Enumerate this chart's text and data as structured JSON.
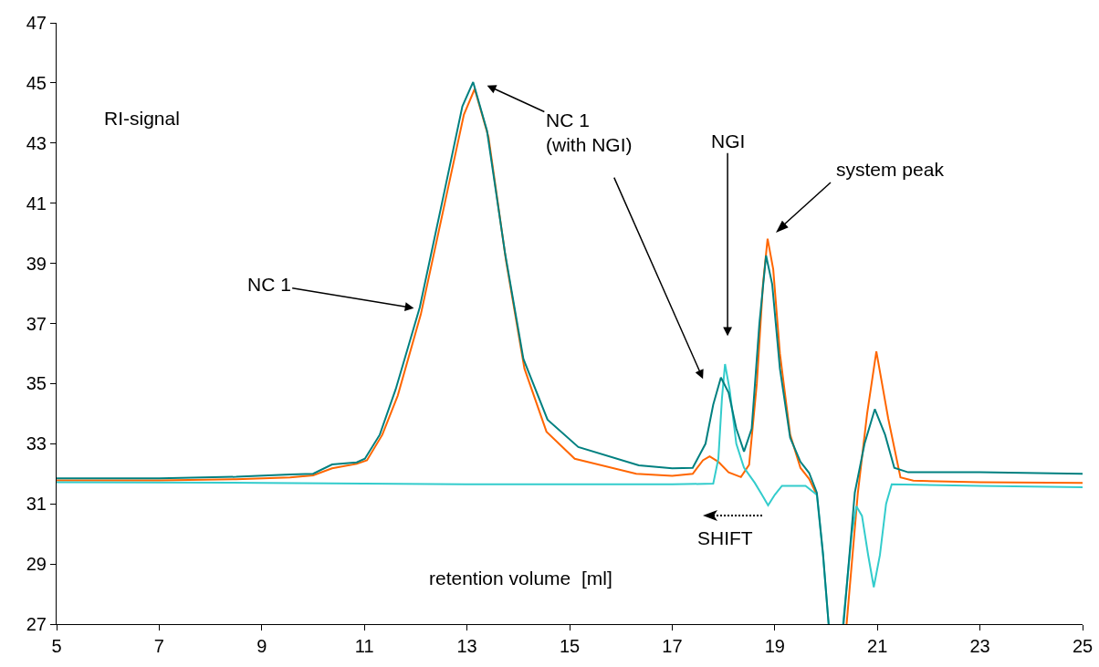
{
  "chart_data": {
    "type": "line",
    "xlabel": "retention volume  [ml]",
    "xlim": [
      5,
      25
    ],
    "xticks": [
      5,
      7,
      9,
      11,
      13,
      15,
      17,
      19,
      21,
      23,
      25
    ],
    "ylim": [
      27,
      47
    ],
    "yticks": [
      27,
      29,
      31,
      33,
      35,
      37,
      39,
      41,
      43,
      45,
      47
    ],
    "grid": false,
    "marker": "none",
    "line_style": "solid",
    "series": [
      {
        "color": "#ff6600",
        "x": [
          5,
          7,
          8.5,
          9.55,
          10.0,
          10.37,
          10.85,
          11.05,
          11.35,
          11.65,
          12.1,
          12.58,
          12.94,
          13.15,
          13.42,
          13.76,
          14.12,
          14.55,
          15.1,
          16.3,
          17.0,
          17.4,
          17.6,
          17.73,
          17.9,
          18.1,
          18.34,
          18.5,
          18.65,
          18.77,
          18.86,
          18.97,
          19.1,
          19.3,
          19.5,
          19.67,
          19.82,
          19.94,
          20.05,
          20.2,
          20.4,
          20.62,
          20.8,
          20.98,
          21.21,
          21.45,
          21.7,
          23,
          25
        ],
        "values": [
          31.78,
          31.78,
          31.82,
          31.88,
          31.95,
          32.18,
          32.33,
          32.45,
          33.3,
          34.6,
          37.3,
          41.1,
          43.95,
          44.8,
          43.2,
          39.1,
          35.5,
          33.4,
          32.5,
          32.0,
          31.93,
          32.0,
          32.45,
          32.58,
          32.4,
          32.05,
          31.89,
          32.3,
          35.0,
          38.3,
          39.82,
          38.8,
          36.0,
          33.3,
          32.2,
          31.83,
          31.3,
          null,
          null,
          null,
          27,
          31.37,
          34.0,
          36.07,
          33.85,
          31.88,
          31.77,
          31.72,
          31.7
        ]
      },
      {
        "color": "#33cccc",
        "x": [
          5,
          9,
          13,
          17,
          17.8,
          17.9,
          17.97,
          18.03,
          18.12,
          18.25,
          18.4,
          18.61,
          18.75,
          18.87,
          19.0,
          19.14,
          19.6,
          19.82,
          19.94,
          20.05,
          20.2,
          20.33,
          20.5,
          20.59,
          20.7,
          20.82,
          20.93,
          21.05,
          21.17,
          21.28,
          23,
          25
        ],
        "values": [
          31.72,
          31.7,
          31.65,
          31.65,
          31.67,
          32.5,
          34.5,
          35.65,
          34.8,
          33.0,
          32.2,
          31.7,
          31.3,
          30.95,
          31.3,
          31.6,
          31.6,
          31.3,
          29.3,
          27,
          null,
          27,
          30.0,
          30.92,
          30.6,
          29.3,
          28.23,
          29.3,
          31.0,
          31.65,
          31.6,
          31.55
        ]
      },
      {
        "color": "#008080",
        "x": [
          5,
          7,
          8.5,
          9.55,
          10.0,
          10.37,
          10.85,
          11.01,
          11.3,
          11.61,
          12.08,
          12.56,
          12.91,
          13.12,
          13.39,
          13.74,
          14.1,
          14.57,
          15.17,
          16.35,
          17.0,
          17.4,
          17.65,
          17.8,
          17.95,
          18.1,
          18.25,
          18.4,
          18.55,
          18.7,
          18.83,
          18.95,
          19.1,
          19.3,
          19.5,
          19.67,
          19.82,
          19.94,
          20.05,
          20.2,
          20.34,
          20.56,
          20.75,
          20.95,
          21.15,
          21.33,
          21.6,
          23,
          25
        ],
        "values": [
          31.85,
          31.85,
          31.9,
          31.98,
          32.0,
          32.31,
          32.38,
          32.5,
          33.3,
          34.81,
          37.54,
          41.39,
          44.22,
          45.03,
          43.41,
          39.36,
          35.82,
          33.8,
          32.89,
          32.28,
          32.18,
          32.2,
          33.0,
          34.3,
          35.2,
          34.7,
          33.5,
          32.74,
          33.5,
          37.0,
          39.26,
          38.3,
          35.5,
          33.2,
          32.4,
          32.03,
          31.37,
          29.35,
          27,
          null,
          27,
          31.37,
          33.0,
          34.15,
          33.3,
          32.2,
          32.05,
          32.05,
          32.0
        ]
      }
    ],
    "annotations": [
      "RI-signal",
      "NC 1",
      "NC 1\n(with NGI)",
      "NGI",
      "system peak",
      "SHIFT"
    ]
  }
}
